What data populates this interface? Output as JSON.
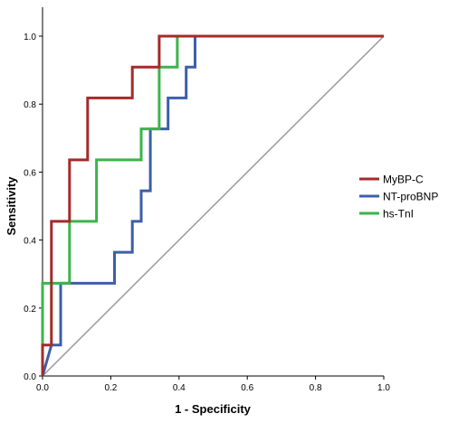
{
  "chart_data": {
    "type": "line",
    "title": "",
    "xlabel": "1 - Specificity",
    "ylabel": "Sensitivity",
    "xlim": [
      0,
      1
    ],
    "ylim": [
      0,
      1
    ],
    "xticks": [
      "0.0",
      "0.2",
      "0.4",
      "0.6",
      "0.8",
      "1.0"
    ],
    "yticks": [
      "0.0",
      "0.2",
      "0.4",
      "0.6",
      "0.8",
      "1.0"
    ],
    "grid": false,
    "legend_position": "right",
    "series": [
      {
        "name": "MyBP-C",
        "color": "#a52a2a",
        "x": [
          0,
          0,
          0.026,
          0.026,
          0.079,
          0.079,
          0.132,
          0.132,
          0.263,
          0.263,
          0.342,
          0.342,
          1
        ],
        "y": [
          0,
          0.091,
          0.091,
          0.455,
          0.455,
          0.636,
          0.636,
          0.818,
          0.818,
          0.909,
          0.909,
          1,
          1
        ]
      },
      {
        "name": "NT-proBNP",
        "color": "#3c5fa8",
        "x": [
          0,
          0.026,
          0.026,
          0.053,
          0.053,
          0.211,
          0.211,
          0.263,
          0.263,
          0.289,
          0.289,
          0.316,
          0.316,
          0.368,
          0.368,
          0.421,
          0.421,
          0.447,
          0.447,
          1
        ],
        "y": [
          0,
          0.091,
          0.091,
          0.091,
          0.273,
          0.273,
          0.364,
          0.364,
          0.455,
          0.455,
          0.545,
          0.545,
          0.727,
          0.727,
          0.818,
          0.818,
          0.909,
          0.909,
          1,
          1
        ]
      },
      {
        "name": "hs-TnI",
        "color": "#3cb44a",
        "x": [
          0,
          0,
          0.079,
          0.079,
          0.158,
          0.158,
          0.289,
          0.289,
          0.342,
          0.342,
          0.395,
          0.395,
          1
        ],
        "y": [
          0,
          0.273,
          0.273,
          0.455,
          0.455,
          0.636,
          0.636,
          0.727,
          0.727,
          0.909,
          0.909,
          1,
          1
        ]
      }
    ],
    "reference_line": {
      "x": [
        0,
        1
      ],
      "y": [
        0,
        1
      ],
      "color": "#9a9a9a"
    }
  }
}
